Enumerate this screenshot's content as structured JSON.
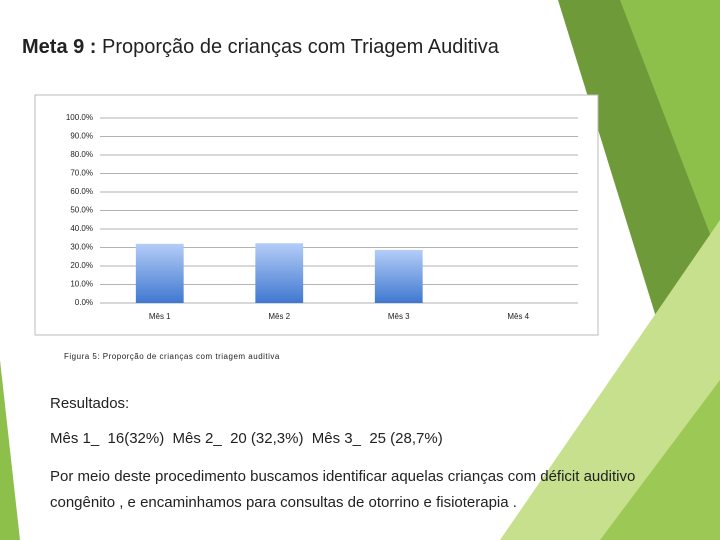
{
  "slide": {
    "title_bold": "Meta 9 :",
    "title_rest": "Proporção de crianças com Triagem Auditiva",
    "caption": "Figura 5: Proporção de crianças com triagem auditiva",
    "results_heading": "Resultados:",
    "results_line": "Mês 1_  16(32%)  Mês 2_  20 (32,3%)  Mês 3_  25 (28,7%)",
    "paragraph": "Por meio deste procedimento buscamos identificar aquelas crianças com déficit auditivo congênito , e encaminhamos para consultas de otorrino e fisioterapia ."
  },
  "chart_data": {
    "type": "bar",
    "categories": [
      "Mês 1",
      "Mês 2",
      "Mês 3",
      "Mês 4"
    ],
    "values": [
      32,
      32.3,
      28.7,
      null
    ],
    "color": "#3f78d0",
    "ylim": [
      0,
      100
    ],
    "yticks": [
      {
        "value": 0,
        "label": "0.0%"
      },
      {
        "value": 10,
        "label": "10.0%"
      },
      {
        "value": 20,
        "label": "20.0%"
      },
      {
        "value": 30,
        "label": "30.0%"
      },
      {
        "value": 40,
        "label": "40.0%"
      },
      {
        "value": 50,
        "label": "50.0%"
      },
      {
        "value": 60,
        "label": "60.0%"
      },
      {
        "value": 70,
        "label": "70.0%"
      },
      {
        "value": 80,
        "label": "80.0%"
      },
      {
        "value": 90,
        "label": "90.0%"
      },
      {
        "value": 100,
        "label": "100.0%"
      }
    ],
    "grid": true
  }
}
